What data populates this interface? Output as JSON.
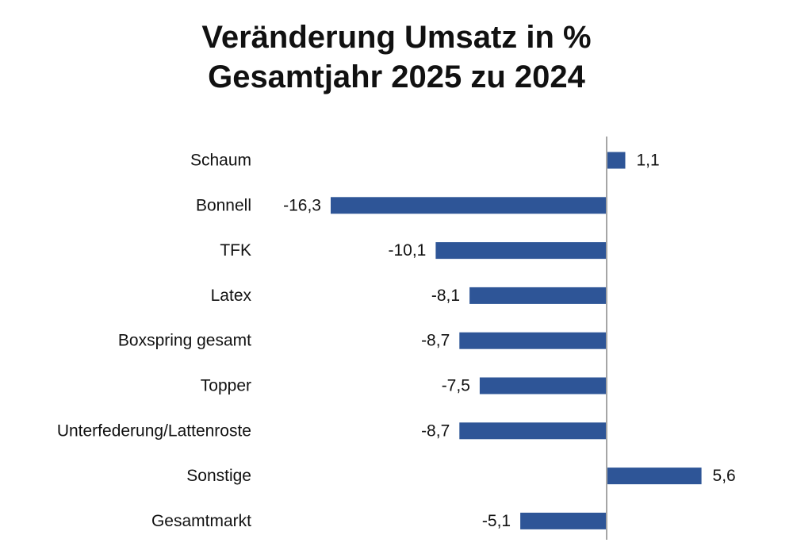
{
  "chart_data": {
    "type": "bar",
    "orientation": "horizontal",
    "title": "Veränderung Umsatz in %",
    "subtitle": "Gesamtjahr 2025 zu 2024",
    "categories": [
      "Schaum",
      "Bonnell",
      "TFK",
      "Latex",
      "Boxspring gesamt",
      "Topper",
      "Unterfederung/Lattenroste",
      "Sonstige",
      "Gesamtmarkt"
    ],
    "values": [
      1.1,
      -16.3,
      -10.1,
      -8.1,
      -8.7,
      -7.5,
      -8.7,
      5.6,
      -5.1
    ],
    "value_labels": [
      "1,1",
      "-16,3",
      "-10,1",
      "-8,1",
      "-8,7",
      "-7,5",
      "-8,7",
      "5,6",
      "-5,1"
    ],
    "bar_color": "#2E5597",
    "axis_color": "#A6A6A6",
    "grid": false,
    "legend": "none"
  }
}
